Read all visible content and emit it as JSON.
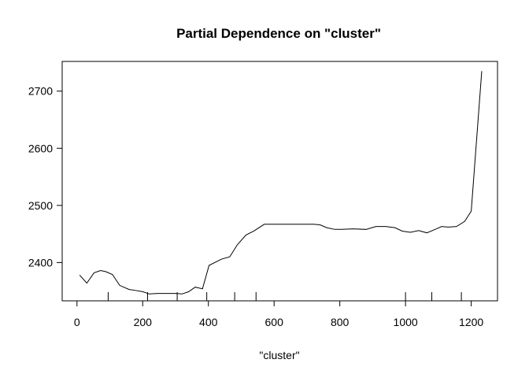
{
  "chart_data": {
    "type": "line",
    "title": "Partial Dependence on \"cluster\"",
    "xlabel": "\"cluster\"",
    "ylabel": "",
    "xlim": [
      -45,
      1280
    ],
    "ylim": [
      2333,
      2752
    ],
    "x_ticks": [
      0,
      200,
      400,
      600,
      800,
      1000,
      1200
    ],
    "y_ticks": [
      2400,
      2500,
      2600,
      2700
    ],
    "grid": false,
    "legend": "none",
    "rug": [
      95,
      215,
      305,
      395,
      480,
      545,
      1000,
      1080,
      1170
    ],
    "series": [
      {
        "x": [
          8,
          30,
          52,
          72,
          88,
          108,
          130,
          158,
          180,
          200,
          220,
          245,
          270,
          300,
          320,
          340,
          360,
          382,
          402,
          440,
          465,
          488,
          514,
          538,
          570,
          610,
          650,
          690,
          720,
          740,
          760,
          785,
          805,
          840,
          880,
          910,
          940,
          968,
          990,
          1015,
          1040,
          1065,
          1090,
          1110,
          1130,
          1155,
          1180,
          1200,
          1232
        ],
        "y": [
          2378,
          2364,
          2382,
          2386,
          2384,
          2379,
          2360,
          2353,
          2351,
          2349,
          2345,
          2346,
          2346,
          2346,
          2345,
          2349,
          2357,
          2354,
          2395,
          2406,
          2410,
          2431,
          2448,
          2455,
          2467,
          2467,
          2467,
          2467,
          2467,
          2466,
          2461,
          2458,
          2458,
          2459,
          2458,
          2463,
          2463,
          2461,
          2455,
          2453,
          2456,
          2452,
          2458,
          2463,
          2462,
          2463,
          2472,
          2490,
          2735
        ]
      }
    ]
  }
}
